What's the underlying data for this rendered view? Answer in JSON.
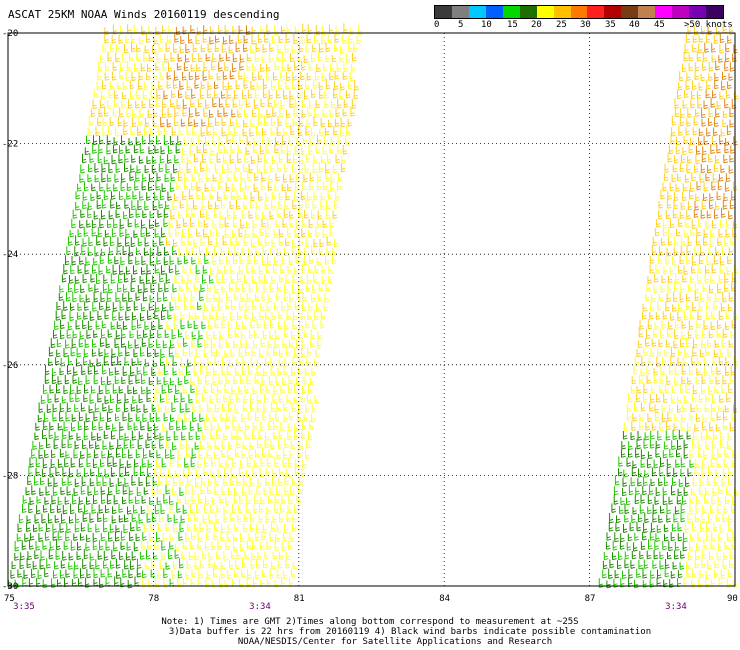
{
  "title": "ASCAT 25KM NOAA Winds 20160119 descending",
  "colorbar": {
    "swatches": [
      "#3a3a3a",
      "#7f7f7f",
      "#00c8ff",
      "#0060ff",
      "#00d800",
      "#1e6e00",
      "#ffff00",
      "#ffc000",
      "#ff7800",
      "#ff2020",
      "#b40000",
      "#783c14",
      "#c08050",
      "#ff00ff",
      "#c000c0",
      "#7800b4",
      "#3c0060"
    ],
    "labels": [
      "0",
      "5",
      "10",
      "15",
      "20",
      "25",
      "30",
      "35",
      "40",
      "45",
      ">50 knots"
    ]
  },
  "map": {
    "lon_range": [
      75,
      90
    ],
    "lat_range": [
      -30,
      -20
    ],
    "x_ticks": [
      "75",
      "78",
      "81",
      "84",
      "87",
      "90"
    ],
    "y_ticks": [
      "-20",
      "-22",
      "-24",
      "-26",
      "-28",
      "-30"
    ],
    "grid": "dotted",
    "times": [
      "3:35",
      "3:34",
      "3:34"
    ],
    "swaths": [
      {
        "name": "western-swath",
        "bottom_lon": [
          75.0,
          80.8
        ],
        "top_lon": [
          77.0,
          82.3
        ]
      },
      {
        "name": "eastern-swath",
        "bottom_lon": [
          87.2,
          90.0
        ],
        "top_lon": [
          89.0,
          90.0
        ]
      }
    ],
    "wind_colors": {
      "green_dark": "#1e8c00",
      "green": "#22c800",
      "yellow": "#ffff33",
      "gold": "#ffd020",
      "orange": "#e08a1a"
    }
  },
  "notes": [
    "Note: 1) Times are GMT 2)Times along bottom correspond to measurement at ~25S",
    "3)Data buffer is 22 hrs from 20160119 4) Black wind barbs indicate possible contamination",
    "NOAA/NESDIS/Center for Satellite Applications and Research"
  ]
}
